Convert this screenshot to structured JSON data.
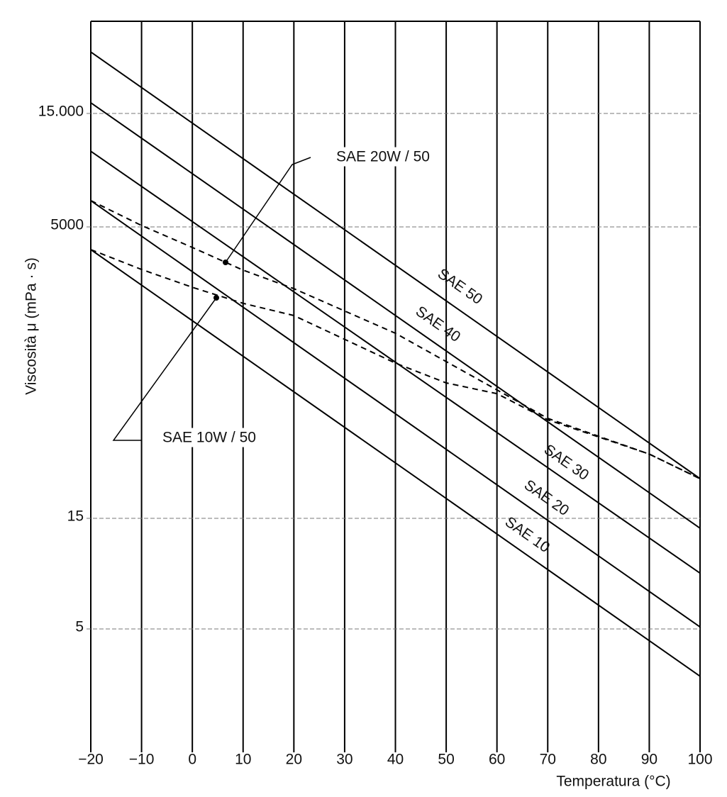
{
  "chart_data": {
    "type": "line",
    "x_label": "Temperatura (°C)",
    "y_label": "Viscosità μ (mPa · s)",
    "xlim": [
      -20,
      100
    ],
    "xticks": [
      {
        "value": -20,
        "label": "−20"
      },
      {
        "value": -10,
        "label": "−10"
      },
      0,
      10,
      20,
      30,
      40,
      50,
      60,
      70,
      80,
      90,
      100
    ],
    "ylim": [
      1.5,
      36000
    ],
    "yticks": [
      5,
      15,
      5000,
      {
        "value": 15000,
        "label": "15.000"
      }
    ],
    "grid": true,
    "series": [
      {
        "name": "SAE 50",
        "color": "#000000",
        "style": "solid",
        "x": [
          -20,
          100
        ],
        "values": [
          26900,
          33.1
        ]
      },
      {
        "name": "SAE 40",
        "color": "#000000",
        "style": "solid",
        "x": [
          -20,
          100
        ],
        "values": [
          16600,
          13.6
        ]
      },
      {
        "name": "SAE 30",
        "color": "#000000",
        "style": "solid",
        "x": [
          -20,
          100
        ],
        "values": [
          10400,
          8.7
        ]
      },
      {
        "name": "SAE 20",
        "color": "#000000",
        "style": "solid",
        "x": [
          -20,
          100
        ],
        "values": [
          6450,
          5.1
        ]
      },
      {
        "name": "SAE 10",
        "color": "#000000",
        "style": "solid",
        "x": [
          -20,
          100
        ],
        "values": [
          3180,
          3.1
        ]
      },
      {
        "name": "SAE 20W / 50",
        "color": "#000000",
        "style": "dashed",
        "x": [
          -20,
          -10,
          0,
          10,
          20,
          40,
          60,
          70,
          90,
          100
        ],
        "values": [
          6450,
          5070,
          3320,
          2110,
          1460,
          600,
          194,
          110,
          54,
          33.1
        ]
      },
      {
        "name": "SAE 10W / 50",
        "color": "#000000",
        "style": "dashed",
        "x": [
          -20,
          -10,
          0,
          10,
          20,
          40,
          50,
          60,
          70,
          90,
          100
        ],
        "values": [
          3180,
          2140,
          1500,
          1090,
          855,
          331,
          223,
          180,
          107,
          54,
          33
        ]
      }
    ]
  }
}
